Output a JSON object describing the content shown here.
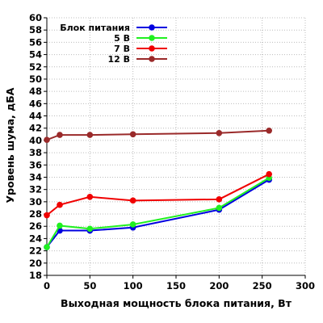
{
  "chart_data": {
    "type": "line",
    "xlabel": "Выходная мощность блока питания, Вт",
    "ylabel": "Уровень шума, дБА",
    "xlim": [
      0,
      300
    ],
    "ylim": [
      18,
      60
    ],
    "x_ticks": [
      0,
      50,
      100,
      150,
      200,
      250,
      300
    ],
    "y_ticks": [
      18,
      20,
      22,
      24,
      26,
      28,
      30,
      32,
      34,
      36,
      38,
      40,
      42,
      44,
      46,
      48,
      50,
      52,
      54,
      56,
      58,
      60
    ],
    "grid": true,
    "legend_position": "top-left",
    "series": [
      {
        "name": "Блок питания",
        "color": "#0000e0",
        "points": [
          [
            0,
            22.6
          ],
          [
            15,
            25.3
          ],
          [
            50,
            25.3
          ],
          [
            100,
            25.8
          ],
          [
            200,
            28.7
          ],
          [
            258,
            33.6
          ]
        ]
      },
      {
        "name": "5 В",
        "color": "#20f020",
        "points": [
          [
            0,
            22.6
          ],
          [
            15,
            26.1
          ],
          [
            50,
            25.6
          ],
          [
            100,
            26.3
          ],
          [
            200,
            29.0
          ],
          [
            258,
            33.9
          ]
        ]
      },
      {
        "name": "7 В",
        "color": "#f00000",
        "points": [
          [
            0,
            27.8
          ],
          [
            15,
            29.5
          ],
          [
            50,
            30.8
          ],
          [
            100,
            30.2
          ],
          [
            200,
            30.4
          ],
          [
            258,
            34.5
          ]
        ]
      },
      {
        "name": "12 В",
        "color": "#9a2a2a",
        "points": [
          [
            0,
            40.1
          ],
          [
            15,
            40.9
          ],
          [
            50,
            40.9
          ],
          [
            100,
            41.0
          ],
          [
            200,
            41.2
          ],
          [
            258,
            41.6
          ]
        ]
      }
    ]
  }
}
